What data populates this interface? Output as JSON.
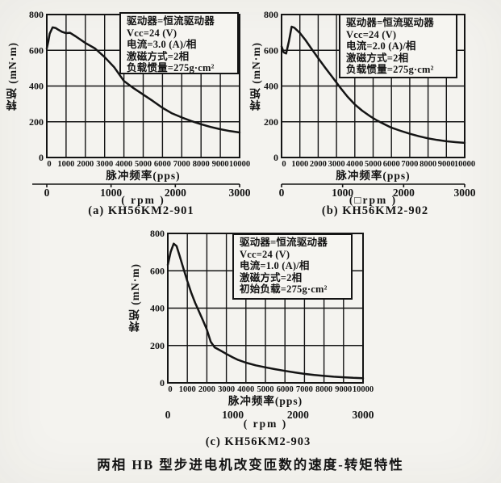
{
  "figure": {
    "bottom_caption": "两相 HB 型步进电机改变匝数的速度-转矩特性"
  },
  "chart_data": [
    {
      "type": "line",
      "id": "a",
      "caption": "(a) KH56KM2-901",
      "ylabel": "转矩 (mN·m)",
      "xlabel": "脉冲频率(pps)",
      "rpm_unit_label": "( rpm )",
      "legend_lines": [
        "驱动器=恒流驱动器",
        "Vcc=24 (V)",
        "电流=3.0 (A)/相",
        "激磁方式=2相",
        "负载惯量=275g·cm²"
      ],
      "xlim": [
        0,
        10000
      ],
      "ylim": [
        0,
        800
      ],
      "xticks": [
        0,
        1000,
        2000,
        3000,
        4000,
        5000,
        6000,
        7000,
        8000,
        9000,
        10000
      ],
      "yticks": [
        0,
        200,
        400,
        600,
        800
      ],
      "rpm_ticks": [
        0,
        1000,
        2000,
        3000
      ],
      "rpm_axis_line": true,
      "grid": true,
      "points": [
        [
          0,
          610
        ],
        [
          80,
          650
        ],
        [
          150,
          693
        ],
        [
          300,
          728
        ],
        [
          450,
          725
        ],
        [
          600,
          715
        ],
        [
          800,
          703
        ],
        [
          1000,
          696
        ],
        [
          1200,
          698
        ],
        [
          1500,
          678
        ],
        [
          2000,
          641
        ],
        [
          2500,
          610
        ],
        [
          3000,
          562
        ],
        [
          3500,
          505
        ],
        [
          4000,
          428
        ],
        [
          4500,
          388
        ],
        [
          5000,
          352
        ],
        [
          5500,
          316
        ],
        [
          6000,
          278
        ],
        [
          6500,
          247
        ],
        [
          7000,
          224
        ],
        [
          7500,
          204
        ],
        [
          8000,
          186
        ],
        [
          8500,
          171
        ],
        [
          9000,
          158
        ],
        [
          9500,
          148
        ],
        [
          10000,
          140
        ]
      ]
    },
    {
      "type": "line",
      "id": "b",
      "caption": "(b) KH56KM2-902",
      "ylabel": "转矩 (mN·m)",
      "xlabel": "脉冲频率(pps)",
      "rpm_unit_label": "(□rpm )",
      "legend_lines": [
        "驱动器=恒流驱动器",
        "Vcc=24 (V)",
        "电流=2.0 (A)/相",
        "激磁方式=2相",
        "负载惯量=275g·cm²"
      ],
      "xlim": [
        0,
        10000
      ],
      "ylim": [
        0,
        800
      ],
      "xticks": [
        0,
        1000,
        2000,
        3000,
        4000,
        5000,
        6000,
        7000,
        8000,
        9000,
        10000
      ],
      "yticks": [
        0,
        200,
        400,
        600,
        800
      ],
      "rpm_ticks": [
        0,
        1000,
        2000,
        3000
      ],
      "rpm_axis_line": true,
      "grid": true,
      "points": [
        [
          0,
          622
        ],
        [
          120,
          588
        ],
        [
          250,
          582
        ],
        [
          400,
          650
        ],
        [
          550,
          732
        ],
        [
          700,
          726
        ],
        [
          1000,
          697
        ],
        [
          1300,
          658
        ],
        [
          1600,
          614
        ],
        [
          2000,
          556
        ],
        [
          2400,
          500
        ],
        [
          2800,
          446
        ],
        [
          3200,
          392
        ],
        [
          3600,
          341
        ],
        [
          4000,
          297
        ],
        [
          4400,
          262
        ],
        [
          4800,
          233
        ],
        [
          5200,
          208
        ],
        [
          5600,
          187
        ],
        [
          6000,
          167
        ],
        [
          6500,
          149
        ],
        [
          7000,
          133
        ],
        [
          7500,
          119
        ],
        [
          8000,
          107
        ],
        [
          8500,
          98
        ],
        [
          9000,
          91
        ],
        [
          9500,
          86
        ],
        [
          10000,
          82
        ]
      ]
    },
    {
      "type": "line",
      "id": "c",
      "caption": "(c) KH56KM2-903",
      "ylabel": "转矩 (mN·m)",
      "xlabel": "脉冲频率(pps)",
      "rpm_unit_label": "( rpm )",
      "legend_lines": [
        "驱动器=恒流驱动器",
        "Vcc=24 (V)",
        "电流=1.0 (A)/相",
        "激磁方式=2相",
        "初始负载=275g·cm²"
      ],
      "xlim": [
        0,
        10000
      ],
      "ylim": [
        0,
        800
      ],
      "xticks": [
        0,
        1000,
        2000,
        3000,
        4000,
        5000,
        6000,
        7000,
        8000,
        9000,
        10000
      ],
      "yticks": [
        0,
        200,
        400,
        600,
        800
      ],
      "rpm_ticks": [
        0,
        1000,
        2000,
        3000
      ],
      "rpm_axis_line": false,
      "grid": true,
      "points": [
        [
          0,
          632
        ],
        [
          150,
          702
        ],
        [
          300,
          745
        ],
        [
          450,
          732
        ],
        [
          600,
          682
        ],
        [
          800,
          612
        ],
        [
          1000,
          545
        ],
        [
          1200,
          483
        ],
        [
          1400,
          428
        ],
        [
          1600,
          382
        ],
        [
          1800,
          334
        ],
        [
          2000,
          285
        ],
        [
          2200,
          220
        ],
        [
          2400,
          190
        ],
        [
          2700,
          173
        ],
        [
          3000,
          155
        ],
        [
          3300,
          138
        ],
        [
          3600,
          123
        ],
        [
          4000,
          108
        ],
        [
          4500,
          94
        ],
        [
          5000,
          83
        ],
        [
          5500,
          73
        ],
        [
          6000,
          64
        ],
        [
          6500,
          56
        ],
        [
          7000,
          48
        ],
        [
          7500,
          42
        ],
        [
          8000,
          37
        ],
        [
          8500,
          33
        ],
        [
          9000,
          30
        ],
        [
          9500,
          27
        ],
        [
          10000,
          25
        ]
      ]
    }
  ],
  "style": {
    "ink_color": "#141414",
    "paper_color": "#f4f3ef"
  }
}
